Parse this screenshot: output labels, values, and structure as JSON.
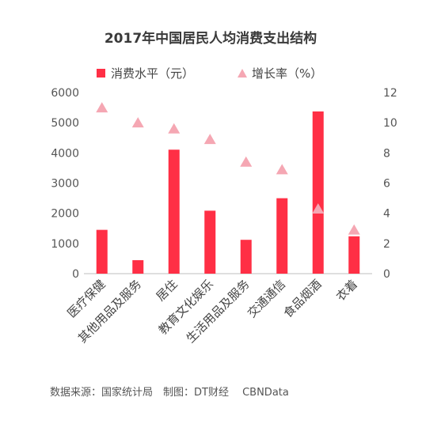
{
  "chart_data": {
    "type": "bar",
    "title": "2017年中国居民人均消费支出结构",
    "categories": [
      "医疗保健",
      "其他用品及服务",
      "居住",
      "教育文化娱乐",
      "生活用品及服务",
      "交通通信",
      "食品烟酒",
      "衣着"
    ],
    "series": [
      {
        "name": "消费水平（元）",
        "axis": "left",
        "type": "bar",
        "values": [
          1451,
          447,
          4107,
          2086,
          1121,
          2499,
          5374,
          1238
        ]
      },
      {
        "name": "增长率（%）",
        "axis": "right",
        "type": "scatter",
        "marker": "triangle",
        "values": [
          11.0,
          10.0,
          9.6,
          8.9,
          7.4,
          6.9,
          4.3,
          2.9
        ]
      }
    ],
    "y_left": {
      "ylim": [
        0,
        6000
      ],
      "ticks": [
        "0",
        "1000",
        "2000",
        "3000",
        "4000",
        "5000",
        "6000"
      ]
    },
    "y_right": {
      "ylim": [
        0,
        12
      ],
      "ticks": [
        "0",
        "2",
        "4",
        "6",
        "8",
        "10",
        "12"
      ]
    },
    "grid": false,
    "legend_position": "top-center",
    "colors": {
      "bar": "#ff2f45",
      "marker": "#f5a7b3",
      "axis": "#bfbfbf"
    }
  },
  "source_note": "数据来源：国家统计局　制图：DT财经　 CBNData"
}
